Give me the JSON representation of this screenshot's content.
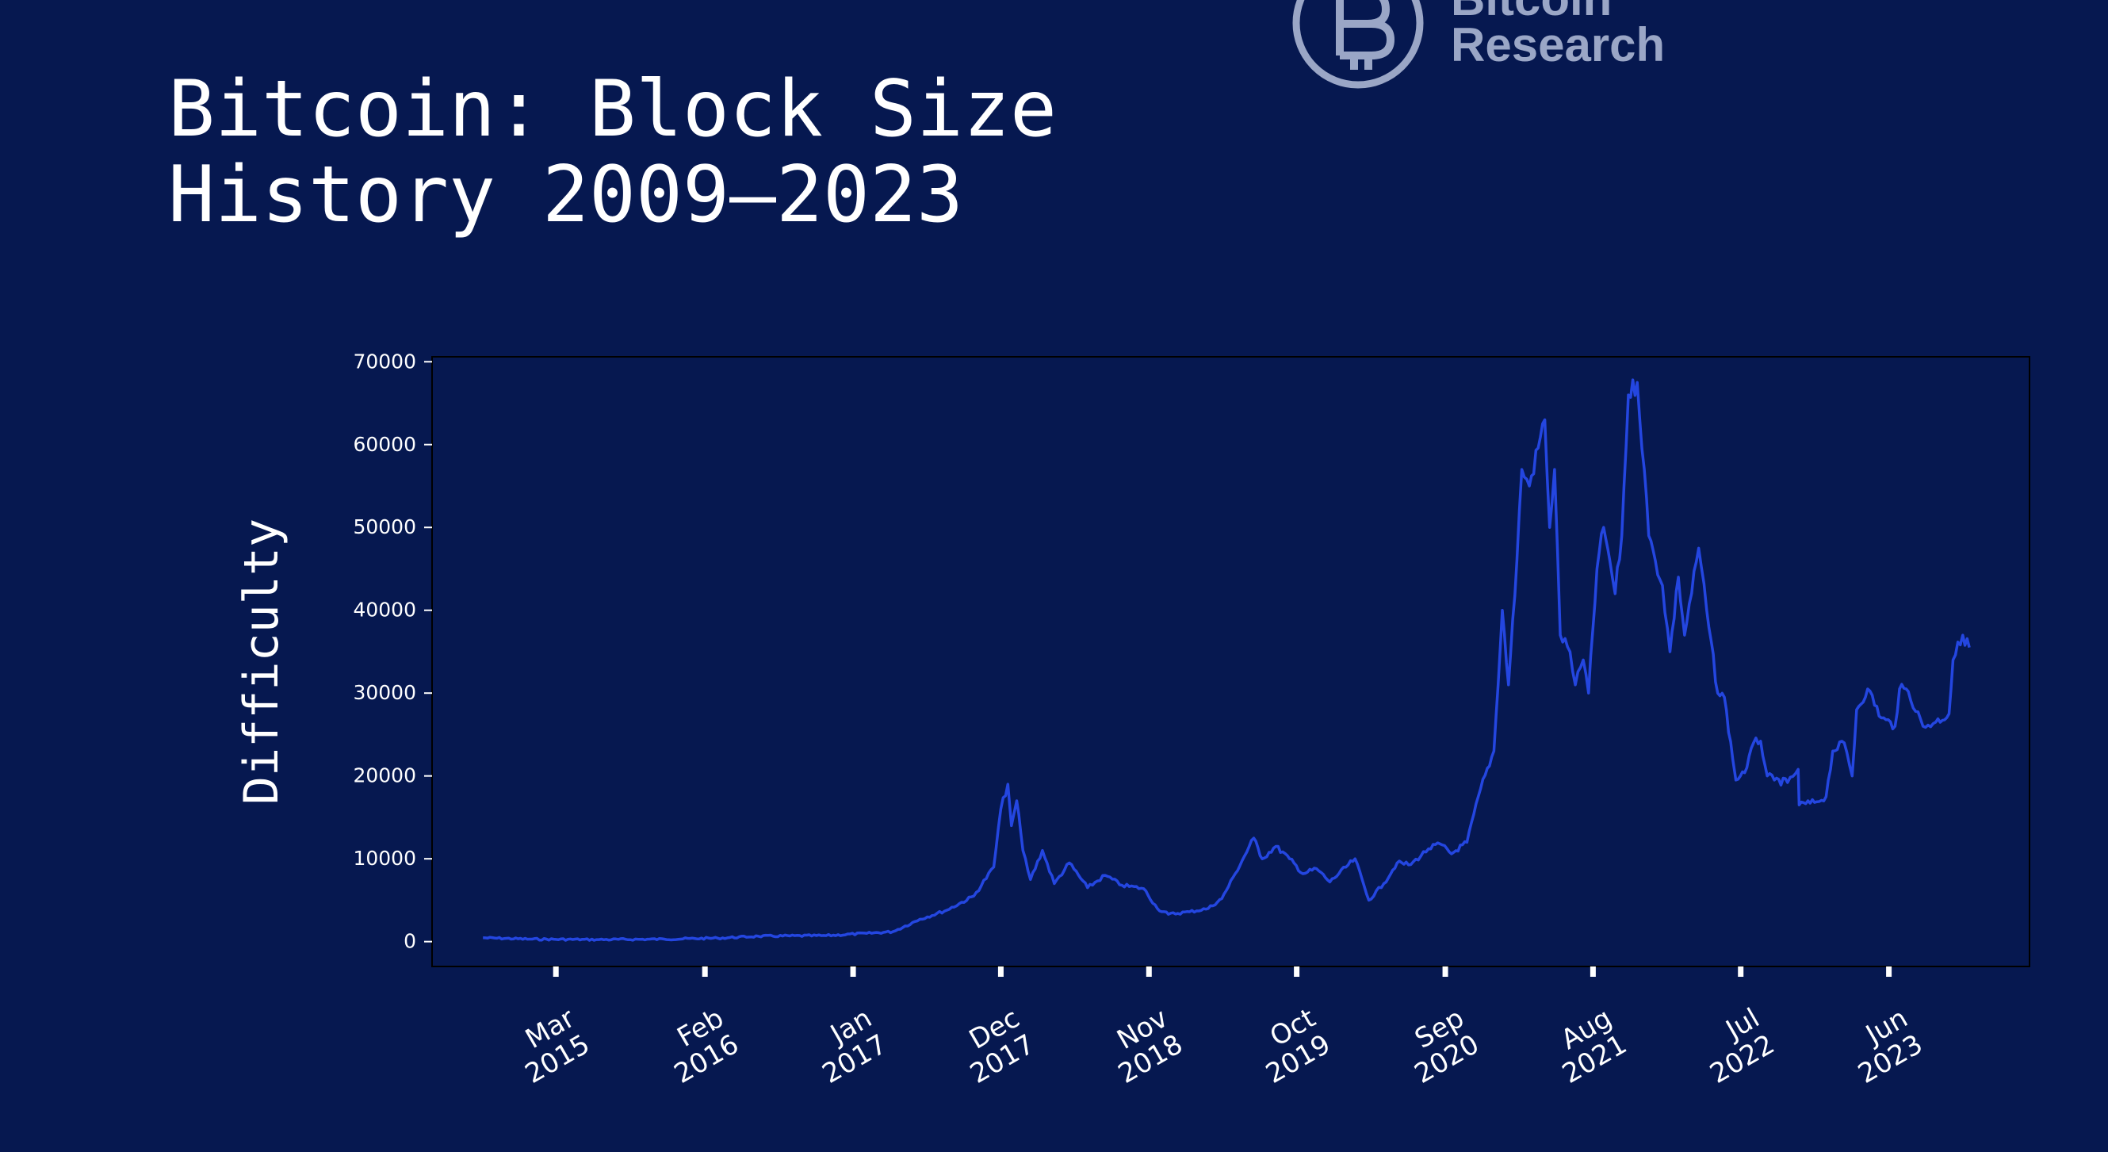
{
  "title": "Bitcoin: Block Size\nHistory 2009–2023",
  "logo": {
    "icon": "bitcoin-research-logo-icon",
    "line1": "Bitcoin",
    "line2": "Research"
  },
  "colors": {
    "background": "#061850",
    "line": "#2446e0",
    "text": "#ffffff",
    "logo": "#9aa6c6"
  },
  "chart_data": {
    "type": "line",
    "title": "Bitcoin: Block Size History 2009–2023",
    "xlabel": "",
    "ylabel": "Difficulty",
    "ylim": [
      -3000,
      70600
    ],
    "yticks": [
      0,
      10000,
      20000,
      30000,
      40000,
      50000,
      60000,
      70000
    ],
    "xlim": [
      "2014-05-25",
      "2024-04-14"
    ],
    "xticks": [
      {
        "date": "2015-03-01",
        "label": [
          "Mar",
          "2015"
        ]
      },
      {
        "date": "2016-02-01",
        "label": [
          "Feb",
          "2016"
        ]
      },
      {
        "date": "2017-01-01",
        "label": [
          "Jan",
          "2017"
        ]
      },
      {
        "date": "2017-12-01",
        "label": [
          "Dec",
          "2017"
        ]
      },
      {
        "date": "2018-11-01",
        "label": [
          "Nov",
          "2018"
        ]
      },
      {
        "date": "2019-10-01",
        "label": [
          "Oct",
          "2019"
        ]
      },
      {
        "date": "2020-09-01",
        "label": [
          "Sep",
          "2020"
        ]
      },
      {
        "date": "2021-08-01",
        "label": [
          "Aug",
          "2021"
        ]
      },
      {
        "date": "2022-07-01",
        "label": [
          "Jul",
          "2022"
        ]
      },
      {
        "date": "2023-06-01",
        "label": [
          "Jun",
          "2023"
        ]
      }
    ],
    "grid": false,
    "series": [
      {
        "color": "#2446e0",
        "points": [
          [
            "2014-09-17",
            460
          ],
          [
            "2015-01-01",
            300
          ],
          [
            "2015-06-01",
            240
          ],
          [
            "2015-11-01",
            300
          ],
          [
            "2016-03-01",
            420
          ],
          [
            "2016-06-01",
            650
          ],
          [
            "2016-11-01",
            720
          ],
          [
            "2017-02-01",
            1000
          ],
          [
            "2017-04-01",
            1200
          ],
          [
            "2017-06-01",
            2700
          ],
          [
            "2017-08-01",
            3800
          ],
          [
            "2017-10-01",
            5500
          ],
          [
            "2017-11-15",
            9000
          ],
          [
            "2017-12-01",
            16000
          ],
          [
            "2017-12-17",
            19000
          ],
          [
            "2017-12-25",
            14000
          ],
          [
            "2018-01-06",
            17000
          ],
          [
            "2018-01-20",
            11000
          ],
          [
            "2018-02-06",
            7500
          ],
          [
            "2018-03-05",
            11000
          ],
          [
            "2018-04-01",
            7000
          ],
          [
            "2018-05-05",
            9500
          ],
          [
            "2018-06-15",
            6500
          ],
          [
            "2018-07-25",
            8000
          ],
          [
            "2018-09-01",
            6800
          ],
          [
            "2018-10-20",
            6400
          ],
          [
            "2018-11-20",
            4000
          ],
          [
            "2018-12-15",
            3300
          ],
          [
            "2019-02-01",
            3600
          ],
          [
            "2019-03-15",
            4000
          ],
          [
            "2019-04-15",
            5200
          ],
          [
            "2019-05-15",
            8200
          ],
          [
            "2019-06-26",
            12500
          ],
          [
            "2019-07-15",
            10000
          ],
          [
            "2019-08-15",
            11500
          ],
          [
            "2019-09-15",
            10000
          ],
          [
            "2019-10-15",
            8200
          ],
          [
            "2019-11-15",
            8800
          ],
          [
            "2019-12-15",
            7200
          ],
          [
            "2020-02-10",
            10000
          ],
          [
            "2020-03-12",
            5000
          ],
          [
            "2020-04-15",
            7000
          ],
          [
            "2020-05-15",
            9500
          ],
          [
            "2020-06-15",
            9300
          ],
          [
            "2020-07-25",
            11200
          ],
          [
            "2020-08-20",
            11800
          ],
          [
            "2020-09-15",
            10600
          ],
          [
            "2020-10-20",
            12000
          ],
          [
            "2020-11-20",
            18500
          ],
          [
            "2020-12-20",
            23000
          ],
          [
            "2021-01-08",
            40000
          ],
          [
            "2021-01-22",
            31000
          ],
          [
            "2021-02-10",
            46000
          ],
          [
            "2021-02-21",
            57000
          ],
          [
            "2021-03-10",
            55000
          ],
          [
            "2021-04-14",
            63000
          ],
          [
            "2021-04-25",
            50000
          ],
          [
            "2021-05-06",
            57000
          ],
          [
            "2021-05-19",
            37000
          ],
          [
            "2021-06-10",
            35000
          ],
          [
            "2021-06-22",
            31000
          ],
          [
            "2021-07-10",
            34000
          ],
          [
            "2021-07-22",
            30000
          ],
          [
            "2021-08-10",
            45000
          ],
          [
            "2021-08-25",
            50000
          ],
          [
            "2021-09-08",
            46000
          ],
          [
            "2021-09-20",
            42000
          ],
          [
            "2021-10-05",
            49000
          ],
          [
            "2021-10-20",
            66000
          ],
          [
            "2021-11-09",
            67500
          ],
          [
            "2021-11-25",
            57000
          ],
          [
            "2021-12-05",
            49000
          ],
          [
            "2021-12-20",
            46000
          ],
          [
            "2022-01-05",
            43000
          ],
          [
            "2022-01-22",
            35000
          ],
          [
            "2022-02-10",
            44000
          ],
          [
            "2022-02-24",
            37000
          ],
          [
            "2022-03-28",
            47500
          ],
          [
            "2022-04-15",
            40000
          ],
          [
            "2022-05-10",
            30000
          ],
          [
            "2022-05-25",
            29500
          ],
          [
            "2022-06-13",
            22000
          ],
          [
            "2022-06-20",
            19500
          ],
          [
            "2022-07-15",
            21000
          ],
          [
            "2022-07-30",
            24000
          ],
          [
            "2022-08-15",
            24200
          ],
          [
            "2022-08-30",
            20000
          ],
          [
            "2022-09-15",
            19500
          ],
          [
            "2022-10-15",
            19200
          ],
          [
            "2022-11-08",
            20800
          ],
          [
            "2022-11-10",
            16500
          ],
          [
            "2022-12-15",
            16800
          ],
          [
            "2023-01-10",
            17500
          ],
          [
            "2023-01-25",
            23000
          ],
          [
            "2023-02-20",
            24000
          ],
          [
            "2023-03-10",
            20000
          ],
          [
            "2023-03-20",
            28000
          ],
          [
            "2023-04-14",
            30500
          ],
          [
            "2023-05-15",
            27000
          ],
          [
            "2023-06-15",
            26000
          ],
          [
            "2023-06-25",
            30500
          ],
          [
            "2023-07-15",
            30200
          ],
          [
            "2023-08-17",
            26000
          ],
          [
            "2023-09-15",
            26500
          ],
          [
            "2023-10-15",
            27500
          ],
          [
            "2023-10-24",
            34000
          ],
          [
            "2023-11-15",
            37000
          ],
          [
            "2023-11-30",
            35500
          ]
        ]
      }
    ]
  }
}
